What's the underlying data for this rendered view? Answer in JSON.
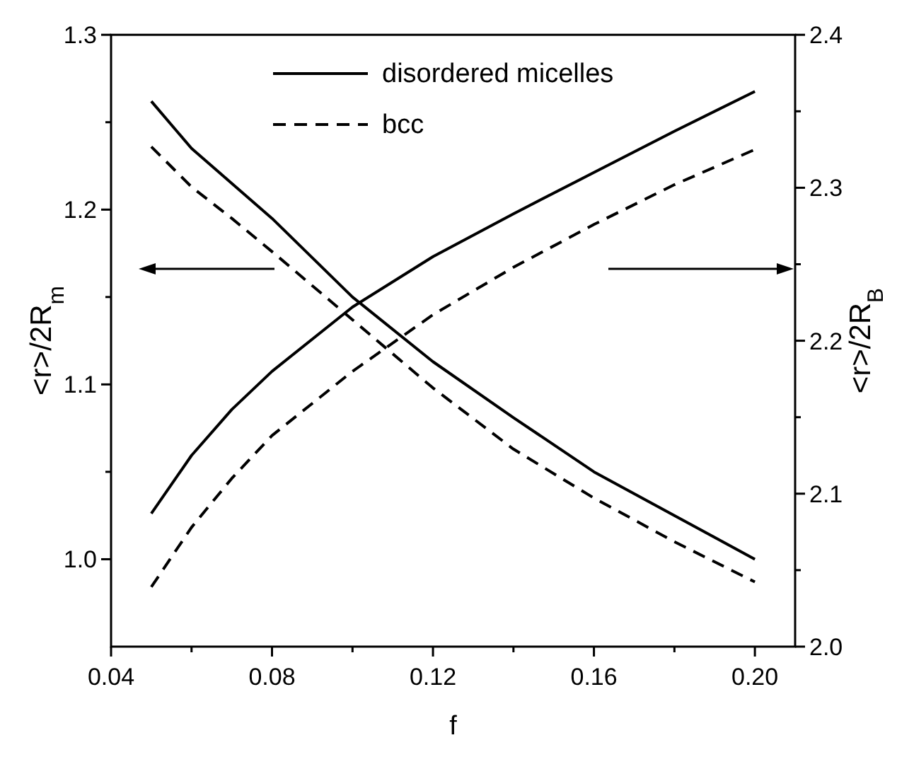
{
  "chart_data": {
    "type": "line",
    "xlabel": "f",
    "ylabel": "<r>/2R$_{m}$",
    "y2label": "<r>/2R$_{B}$",
    "x": [
      0.05,
      0.06,
      0.07,
      0.08,
      0.1,
      0.12,
      0.14,
      0.16,
      0.18,
      0.2
    ],
    "series": [
      {
        "name": "disordered micelles",
        "color": "#000000",
        "line_style": "solid",
        "values": [
          1.262,
          1.235,
          1.215,
          1.195,
          1.15,
          1.113,
          1.081,
          1.05,
          1.025,
          1.0
        ]
      },
      {
        "name": "bcc",
        "color": "#000000",
        "line_style": "dashed",
        "values": [
          1.236,
          1.213,
          1.195,
          1.176,
          1.137,
          1.098,
          1.063,
          1.035,
          1.01,
          0.987
        ]
      },
      {
        "color": "#000000",
        "line_style": "solid",
        "axis": "y2",
        "values": [
          2.087,
          2.125,
          2.155,
          2.18,
          2.222,
          2.255,
          2.283,
          2.31,
          2.337,
          2.363
        ]
      },
      {
        "color": "#000000",
        "line_style": "dashed",
        "axis": "y2",
        "values": [
          2.039,
          2.078,
          2.11,
          2.138,
          2.18,
          2.217,
          2.248,
          2.276,
          2.302,
          2.325
        ]
      }
    ],
    "xlim": [
      0.04,
      0.21
    ],
    "xticks": [
      0.04,
      {
        "value": 0.06,
        "label": null
      },
      0.08,
      {
        "value": 0.1,
        "label": null
      },
      0.12,
      {
        "value": 0.14,
        "label": null
      },
      0.16,
      {
        "value": 0.18,
        "label": null
      },
      {
        "value": 0.2,
        "label": "0.20"
      }
    ],
    "ylim": [
      0.95,
      1.3
    ],
    "yticks": [
      {
        "value": 1,
        "label": "1.0"
      },
      {
        "value": 1.05,
        "label": null
      },
      1.1,
      {
        "value": 1.15,
        "label": null
      },
      1.2,
      {
        "value": 1.25,
        "label": null
      },
      1.3
    ],
    "y2lim": [
      2.0,
      2.4
    ],
    "y2ticks": [
      {
        "value": 2,
        "label": "2.0"
      },
      {
        "value": 2.05,
        "label": null
      },
      2.1,
      {
        "value": 2.15,
        "label": null
      },
      2.2,
      {
        "value": 2.25,
        "label": null
      },
      2.3,
      {
        "value": 2.35,
        "label": null
      },
      2.4
    ],
    "grid": false,
    "legend": "top",
    "marker": "none"
  }
}
